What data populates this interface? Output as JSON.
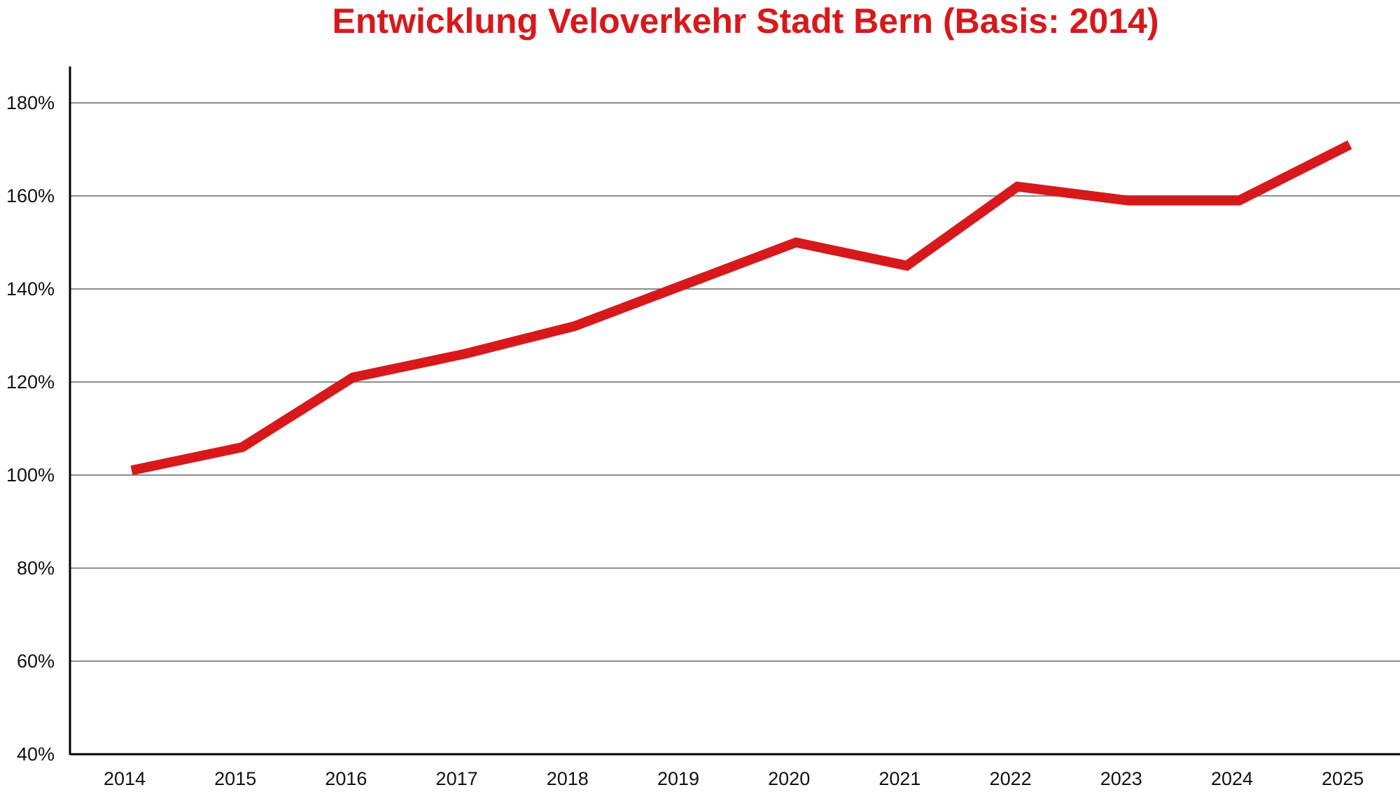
{
  "chart_data": {
    "type": "line",
    "title": "Entwicklung Veloverkehr Stadt Bern (Basis: 2014)",
    "xlabel": "",
    "ylabel": "",
    "categories": [
      "2014",
      "2015",
      "2016",
      "2017",
      "2018",
      "2019",
      "2020",
      "2021",
      "2022",
      "2023",
      "2024",
      "2025"
    ],
    "series": [
      {
        "values": [
          101,
          106,
          121,
          126,
          132,
          141,
          150,
          145,
          162,
          159,
          159,
          171
        ]
      }
    ],
    "ylim": [
      40,
      180
    ],
    "yticks": [
      40,
      60,
      80,
      100,
      120,
      140,
      160,
      180
    ],
    "ytick_format": "%",
    "grid": true,
    "line_color": "#d7191c",
    "grid_color": "#8c8c8c",
    "axis_color": "#000000"
  }
}
